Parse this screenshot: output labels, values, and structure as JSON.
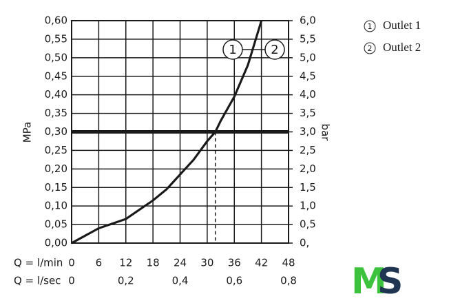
{
  "chart_data": {
    "type": "line",
    "x_label": "Q = l/min",
    "x2_label": "Q = l/sec",
    "y_label": "MPa",
    "y2_label": "bar",
    "x": [
      0,
      6,
      12,
      15,
      18,
      21,
      24,
      27,
      30,
      31.8,
      33,
      36,
      39,
      42
    ],
    "series": [
      {
        "name": "Outlet 1",
        "marker": "1",
        "color": "#1a1a1a",
        "values": [
          0,
          0.04,
          0.065,
          0.09,
          0.115,
          0.145,
          0.185,
          0.225,
          0.275,
          0.3,
          0.33,
          0.395,
          0.48,
          0.6
        ]
      },
      {
        "name": "Outlet 2",
        "marker": "2",
        "color": "#1a1a1a",
        "values": [
          0,
          0.04,
          0.065,
          0.09,
          0.115,
          0.145,
          0.185,
          0.225,
          0.275,
          0.3,
          0.33,
          0.395,
          0.48,
          0.6
        ]
      }
    ],
    "reference_y": 0.3,
    "reference_x": 31.8,
    "xlim": [
      0,
      48
    ],
    "xticks": [
      0,
      6,
      12,
      18,
      24,
      30,
      36,
      42,
      48
    ],
    "x2lim": [
      0,
      0.8
    ],
    "x2ticks": [
      0,
      {
        "value": 0.2,
        "label": "0,2"
      },
      {
        "value": 0.4,
        "label": "0,4"
      },
      {
        "value": 0.6,
        "label": "0,6"
      },
      {
        "value": 0.8,
        "label": "0,8"
      }
    ],
    "ylim": [
      0,
      0.6
    ],
    "yticks": [
      {
        "value": 0,
        "label": "0,00"
      },
      {
        "value": 0.05,
        "label": "0,05"
      },
      {
        "value": 0.1,
        "label": "0,10"
      },
      {
        "value": 0.15,
        "label": "0,15"
      },
      {
        "value": 0.2,
        "label": "0,20"
      },
      {
        "value": 0.25,
        "label": "0,25"
      },
      {
        "value": 0.3,
        "label": "0,30"
      },
      {
        "value": 0.35,
        "label": "0,35"
      },
      {
        "value": 0.4,
        "label": "0,40"
      },
      {
        "value": 0.45,
        "label": "0,45"
      },
      {
        "value": 0.5,
        "label": "0,50"
      },
      {
        "value": 0.55,
        "label": "0,55"
      },
      {
        "value": 0.6,
        "label": "0,60"
      }
    ],
    "y2lim": [
      0,
      6
    ],
    "y2ticks": [
      {
        "value": 0,
        "label": "0,"
      },
      {
        "value": 0.5,
        "label": "0,5"
      },
      {
        "value": 1,
        "label": "1,0"
      },
      {
        "value": 1.5,
        "label": "1,5"
      },
      {
        "value": 2,
        "label": "2,0"
      },
      {
        "value": 2.5,
        "label": "2,5"
      },
      {
        "value": 3,
        "label": "3,0"
      },
      {
        "value": 3.5,
        "label": "3,5"
      },
      {
        "value": 4,
        "label": "4,0"
      },
      {
        "value": 4.5,
        "label": "4,5"
      },
      {
        "value": 5,
        "label": "5,0"
      },
      {
        "value": 5.5,
        "label": "5,5"
      },
      {
        "value": 6,
        "label": "6,0"
      }
    ],
    "grid": true
  },
  "logo": [
    "M",
    "S"
  ]
}
